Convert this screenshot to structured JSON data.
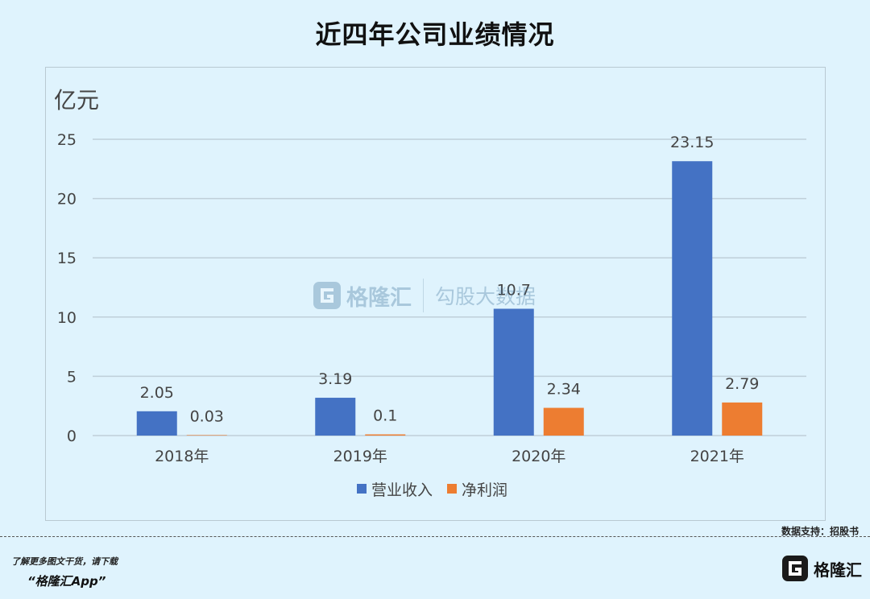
{
  "page": {
    "source_note": "数据支持：招股书",
    "promo_line1": "了解更多图文干货，请下载",
    "promo_line2": "“格隆汇App”",
    "footer_logo_text": "格隆汇",
    "watermark_left": "格隆汇",
    "watermark_right": "勾股大数据"
  },
  "colors": {
    "revenue": "#4472c4",
    "profit": "#ed7d31",
    "grid": "#bfcfd9"
  },
  "chart_data": {
    "type": "bar",
    "title": "近四年公司业绩情况",
    "ylabel": "亿元",
    "xlabel": "",
    "categories": [
      "2018年",
      "2019年",
      "2020年",
      "2021年"
    ],
    "ylim": [
      0,
      25
    ],
    "yticks": [
      0,
      5,
      10,
      15,
      20,
      25
    ],
    "grid": true,
    "legend_position": "bottom",
    "series": [
      {
        "name": "营业收入",
        "values": [
          2.05,
          3.19,
          10.7,
          23.15
        ],
        "labels": [
          "2.05",
          "3.19",
          "10.7",
          "23.15"
        ]
      },
      {
        "name": "净利润",
        "values": [
          0.03,
          0.1,
          2.34,
          2.79
        ],
        "labels": [
          "0.03",
          "0.1",
          "2.34",
          "2.79"
        ]
      }
    ]
  }
}
